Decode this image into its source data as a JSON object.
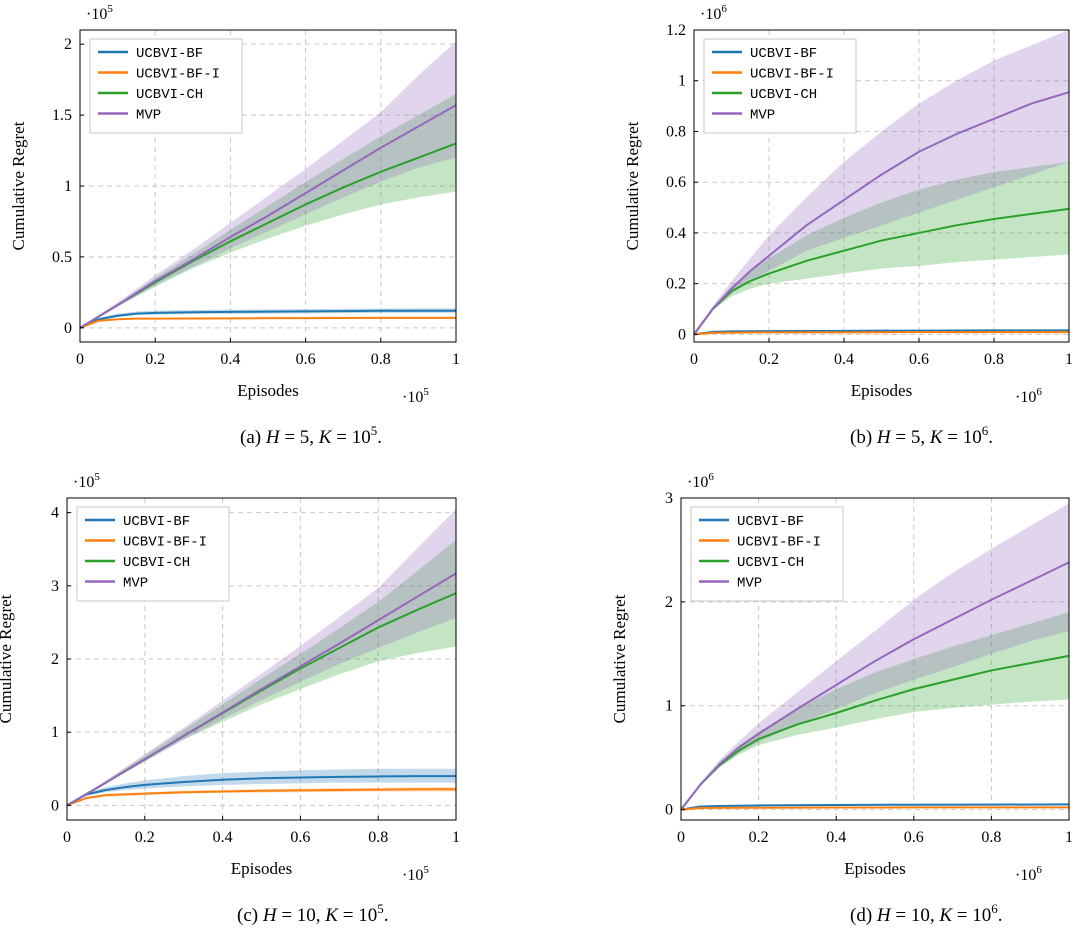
{
  "chart_data": [
    {
      "type": "line",
      "panel_label": "(a)",
      "caption": {
        "h_value": "5",
        "k_exponent": "5"
      },
      "xlabel": "Episodes",
      "ylabel": "Cumulative Regret",
      "x_multiplier": "·10",
      "x_exponent": "5",
      "y_multiplier": "·10",
      "y_exponent": "5",
      "xlim": [
        0,
        1
      ],
      "ylim": [
        -0.1,
        2.1
      ],
      "xticks": [
        0,
        0.2,
        0.4,
        0.6,
        0.8,
        1
      ],
      "xtick_labels": [
        "0",
        "0.2",
        "0.4",
        "0.6",
        "0.8",
        "1"
      ],
      "yticks": [
        0,
        0.5,
        1,
        1.5,
        2
      ],
      "ytick_labels": [
        "0",
        "0.5",
        "1",
        "1.5",
        "2"
      ],
      "grid": true,
      "legend_position": "top-left",
      "series": [
        {
          "name": "UCBVI-BF",
          "color": "#1f77b4",
          "x": [
            0,
            0.05,
            0.1,
            0.15,
            0.2,
            0.3,
            0.4,
            0.5,
            0.6,
            0.7,
            0.8,
            0.9,
            1
          ],
          "y": [
            0,
            0.06,
            0.085,
            0.1,
            0.105,
            0.11,
            0.112,
            0.114,
            0.116,
            0.118,
            0.12,
            0.12,
            0.12
          ],
          "lower": [
            0,
            0.05,
            0.075,
            0.09,
            0.092,
            0.097,
            0.099,
            0.1,
            0.102,
            0.104,
            0.105,
            0.105,
            0.105
          ],
          "upper": [
            0,
            0.07,
            0.1,
            0.115,
            0.12,
            0.126,
            0.128,
            0.13,
            0.132,
            0.134,
            0.136,
            0.137,
            0.138
          ]
        },
        {
          "name": "UCBVI-BF-I",
          "color": "#ff7f0e",
          "x": [
            0,
            0.05,
            0.1,
            0.15,
            0.2,
            0.3,
            0.4,
            0.5,
            0.6,
            0.7,
            0.8,
            0.9,
            1
          ],
          "y": [
            0,
            0.05,
            0.06,
            0.065,
            0.065,
            0.066,
            0.067,
            0.068,
            0.068,
            0.069,
            0.07,
            0.07,
            0.07
          ],
          "lower": [
            0,
            0.045,
            0.055,
            0.06,
            0.06,
            0.061,
            0.062,
            0.063,
            0.063,
            0.064,
            0.065,
            0.065,
            0.065
          ],
          "upper": [
            0,
            0.055,
            0.065,
            0.07,
            0.07,
            0.071,
            0.072,
            0.073,
            0.073,
            0.074,
            0.075,
            0.075,
            0.075
          ]
        },
        {
          "name": "UCBVI-CH",
          "color": "#2ca02c",
          "x": [
            0,
            0.1,
            0.2,
            0.3,
            0.4,
            0.5,
            0.6,
            0.7,
            0.8,
            0.9,
            1
          ],
          "y": [
            0,
            0.16,
            0.32,
            0.47,
            0.61,
            0.74,
            0.87,
            0.99,
            1.1,
            1.2,
            1.3
          ],
          "lower": [
            0,
            0.15,
            0.29,
            0.42,
            0.53,
            0.63,
            0.72,
            0.8,
            0.87,
            0.92,
            0.96
          ],
          "upper": [
            0,
            0.17,
            0.35,
            0.52,
            0.69,
            0.86,
            1.03,
            1.19,
            1.35,
            1.5,
            1.65
          ]
        },
        {
          "name": "MVP",
          "color": "#9467bd",
          "x": [
            0,
            0.1,
            0.2,
            0.3,
            0.4,
            0.5,
            0.6,
            0.7,
            0.8,
            0.9,
            1
          ],
          "y": [
            0,
            0.16,
            0.33,
            0.48,
            0.64,
            0.79,
            0.95,
            1.11,
            1.27,
            1.42,
            1.57
          ],
          "lower": [
            0,
            0.15,
            0.3,
            0.43,
            0.56,
            0.68,
            0.8,
            0.92,
            1.03,
            1.13,
            1.2
          ],
          "upper": [
            0,
            0.18,
            0.37,
            0.55,
            0.74,
            0.93,
            1.12,
            1.32,
            1.52,
            1.78,
            2.02
          ]
        }
      ]
    },
    {
      "type": "line",
      "panel_label": "(b)",
      "caption": {
        "h_value": "5",
        "k_exponent": "6"
      },
      "xlabel": "Episodes",
      "ylabel": "Cumulative Regret",
      "x_multiplier": "·10",
      "x_exponent": "6",
      "y_multiplier": "·10",
      "y_exponent": "6",
      "xlim": [
        0,
        1
      ],
      "ylim": [
        -0.03,
        1.2
      ],
      "xticks": [
        0,
        0.2,
        0.4,
        0.6,
        0.8,
        1
      ],
      "xtick_labels": [
        "0",
        "0.2",
        "0.4",
        "0.6",
        "0.8",
        "1"
      ],
      "yticks": [
        0,
        0.2,
        0.4,
        0.6,
        0.8,
        1,
        1.2
      ],
      "ytick_labels": [
        "0",
        "0.2",
        "0.4",
        "0.6",
        "0.8",
        "1",
        "1.2"
      ],
      "grid": true,
      "legend_position": "top-left",
      "series": [
        {
          "name": "UCBVI-BF",
          "color": "#1f77b4",
          "x": [
            0,
            0.05,
            0.1,
            0.2,
            0.4,
            0.6,
            0.8,
            1
          ],
          "y": [
            0,
            0.01,
            0.012,
            0.013,
            0.014,
            0.015,
            0.016,
            0.016
          ],
          "lower": [
            0,
            0.008,
            0.01,
            0.011,
            0.012,
            0.013,
            0.013,
            0.013
          ],
          "upper": [
            0,
            0.012,
            0.014,
            0.015,
            0.016,
            0.017,
            0.018,
            0.019
          ]
        },
        {
          "name": "UCBVI-BF-I",
          "color": "#ff7f0e",
          "x": [
            0,
            0.05,
            0.1,
            0.2,
            0.4,
            0.6,
            0.8,
            1
          ],
          "y": [
            0,
            0.006,
            0.007,
            0.008,
            0.008,
            0.009,
            0.009,
            0.009
          ],
          "lower": [
            0,
            0.004,
            0.005,
            0.006,
            0.006,
            0.007,
            0.007,
            0.007
          ],
          "upper": [
            0,
            0.008,
            0.009,
            0.01,
            0.01,
            0.011,
            0.011,
            0.011
          ]
        },
        {
          "name": "UCBVI-CH",
          "color": "#2ca02c",
          "x": [
            0,
            0.05,
            0.1,
            0.15,
            0.2,
            0.3,
            0.4,
            0.5,
            0.6,
            0.7,
            0.8,
            0.9,
            1
          ],
          "y": [
            0,
            0.1,
            0.17,
            0.21,
            0.24,
            0.29,
            0.33,
            0.37,
            0.4,
            0.43,
            0.455,
            0.475,
            0.495
          ],
          "lower": [
            0,
            0.095,
            0.15,
            0.18,
            0.2,
            0.22,
            0.24,
            0.26,
            0.27,
            0.285,
            0.295,
            0.305,
            0.315
          ],
          "upper": [
            0,
            0.11,
            0.19,
            0.25,
            0.3,
            0.39,
            0.46,
            0.52,
            0.57,
            0.61,
            0.64,
            0.66,
            0.68
          ]
        },
        {
          "name": "MVP",
          "color": "#9467bd",
          "x": [
            0,
            0.05,
            0.1,
            0.15,
            0.2,
            0.3,
            0.4,
            0.5,
            0.6,
            0.7,
            0.8,
            0.9,
            1
          ],
          "y": [
            0,
            0.1,
            0.18,
            0.25,
            0.31,
            0.43,
            0.53,
            0.63,
            0.72,
            0.79,
            0.85,
            0.91,
            0.955
          ],
          "lower": [
            0,
            0.095,
            0.16,
            0.21,
            0.25,
            0.33,
            0.38,
            0.43,
            0.48,
            0.53,
            0.58,
            0.63,
            0.68
          ],
          "upper": [
            0,
            0.11,
            0.21,
            0.3,
            0.39,
            0.54,
            0.68,
            0.8,
            0.91,
            1.0,
            1.08,
            1.14,
            1.2
          ]
        }
      ]
    },
    {
      "type": "line",
      "panel_label": "(c)",
      "caption": {
        "h_value": "10",
        "k_exponent": "5"
      },
      "xlabel": "Episodes",
      "ylabel": "Cumulative Regret",
      "x_multiplier": "·10",
      "x_exponent": "5",
      "y_multiplier": "·10",
      "y_exponent": "5",
      "xlim": [
        0,
        1
      ],
      "ylim": [
        -0.2,
        4.2
      ],
      "xticks": [
        0,
        0.2,
        0.4,
        0.6,
        0.8,
        1
      ],
      "xtick_labels": [
        "0",
        "0.2",
        "0.4",
        "0.6",
        "0.8",
        "1"
      ],
      "yticks": [
        0,
        1,
        2,
        3,
        4
      ],
      "ytick_labels": [
        "0",
        "1",
        "2",
        "3",
        "4"
      ],
      "grid": true,
      "legend_position": "top-left",
      "series": [
        {
          "name": "UCBVI-BF",
          "color": "#1f77b4",
          "x": [
            0,
            0.05,
            0.1,
            0.15,
            0.2,
            0.3,
            0.4,
            0.5,
            0.6,
            0.7,
            0.8,
            0.9,
            1
          ],
          "y": [
            0,
            0.15,
            0.21,
            0.25,
            0.28,
            0.32,
            0.35,
            0.37,
            0.38,
            0.39,
            0.395,
            0.4,
            0.4
          ],
          "lower": [
            0,
            0.13,
            0.18,
            0.21,
            0.23,
            0.26,
            0.28,
            0.29,
            0.3,
            0.31,
            0.31,
            0.31,
            0.31
          ],
          "upper": [
            0,
            0.17,
            0.25,
            0.3,
            0.34,
            0.4,
            0.44,
            0.46,
            0.48,
            0.49,
            0.5,
            0.5,
            0.5
          ]
        },
        {
          "name": "UCBVI-BF-I",
          "color": "#ff7f0e",
          "x": [
            0,
            0.05,
            0.1,
            0.15,
            0.2,
            0.3,
            0.4,
            0.5,
            0.6,
            0.7,
            0.8,
            0.9,
            1
          ],
          "y": [
            0,
            0.1,
            0.14,
            0.15,
            0.16,
            0.18,
            0.19,
            0.2,
            0.205,
            0.21,
            0.215,
            0.22,
            0.22
          ],
          "lower": [
            0,
            0.09,
            0.12,
            0.13,
            0.14,
            0.16,
            0.17,
            0.175,
            0.18,
            0.185,
            0.19,
            0.19,
            0.19
          ],
          "upper": [
            0,
            0.11,
            0.16,
            0.17,
            0.18,
            0.2,
            0.21,
            0.22,
            0.23,
            0.235,
            0.24,
            0.245,
            0.25
          ]
        },
        {
          "name": "UCBVI-CH",
          "color": "#2ca02c",
          "x": [
            0,
            0.1,
            0.2,
            0.3,
            0.4,
            0.5,
            0.6,
            0.7,
            0.8,
            0.9,
            1
          ],
          "y": [
            0,
            0.31,
            0.63,
            0.95,
            1.26,
            1.57,
            1.87,
            2.15,
            2.43,
            2.67,
            2.9
          ],
          "lower": [
            0,
            0.3,
            0.6,
            0.9,
            1.14,
            1.38,
            1.59,
            1.79,
            1.97,
            2.08,
            2.17
          ],
          "upper": [
            0,
            0.33,
            0.68,
            1.03,
            1.38,
            1.73,
            2.07,
            2.42,
            2.78,
            3.2,
            3.63
          ]
        },
        {
          "name": "MVP",
          "color": "#9467bd",
          "x": [
            0,
            0.1,
            0.2,
            0.3,
            0.4,
            0.5,
            0.6,
            0.7,
            0.8,
            0.9,
            1
          ],
          "y": [
            0,
            0.31,
            0.63,
            0.95,
            1.27,
            1.59,
            1.9,
            2.21,
            2.53,
            2.85,
            3.17
          ],
          "lower": [
            0,
            0.3,
            0.6,
            0.9,
            1.18,
            1.44,
            1.69,
            1.93,
            2.15,
            2.36,
            2.56
          ],
          "upper": [
            0,
            0.34,
            0.7,
            1.06,
            1.43,
            1.8,
            2.18,
            2.57,
            2.97,
            3.51,
            4.05
          ]
        }
      ]
    },
    {
      "type": "line",
      "panel_label": "(d)",
      "caption": {
        "h_value": "10",
        "k_exponent": "6"
      },
      "xlabel": "Episodes",
      "ylabel": "Cumulative Regret",
      "x_multiplier": "·10",
      "x_exponent": "6",
      "y_multiplier": "·10",
      "y_exponent": "6",
      "xlim": [
        0,
        1
      ],
      "ylim": [
        -0.1,
        3
      ],
      "xticks": [
        0,
        0.2,
        0.4,
        0.6,
        0.8,
        1
      ],
      "xtick_labels": [
        "0",
        "0.2",
        "0.4",
        "0.6",
        "0.8",
        "1"
      ],
      "yticks": [
        0,
        1,
        2,
        3
      ],
      "ytick_labels": [
        "0",
        "1",
        "2",
        "3"
      ],
      "grid": true,
      "legend_position": "top-left",
      "series": [
        {
          "name": "UCBVI-BF",
          "color": "#1f77b4",
          "x": [
            0,
            0.05,
            0.1,
            0.2,
            0.4,
            0.6,
            0.8,
            1
          ],
          "y": [
            0,
            0.03,
            0.035,
            0.04,
            0.045,
            0.047,
            0.048,
            0.05
          ],
          "lower": [
            0,
            0.025,
            0.03,
            0.034,
            0.038,
            0.04,
            0.041,
            0.042
          ],
          "upper": [
            0,
            0.035,
            0.04,
            0.046,
            0.052,
            0.055,
            0.056,
            0.058
          ]
        },
        {
          "name": "UCBVI-BF-I",
          "color": "#ff7f0e",
          "x": [
            0,
            0.05,
            0.1,
            0.2,
            0.4,
            0.6,
            0.8,
            1
          ],
          "y": [
            0,
            0.015,
            0.017,
            0.018,
            0.02,
            0.021,
            0.022,
            0.022
          ],
          "lower": [
            0,
            0.011,
            0.013,
            0.014,
            0.016,
            0.017,
            0.018,
            0.018
          ],
          "upper": [
            0,
            0.019,
            0.021,
            0.022,
            0.024,
            0.025,
            0.026,
            0.026
          ]
        },
        {
          "name": "UCBVI-CH",
          "color": "#2ca02c",
          "x": [
            0,
            0.05,
            0.1,
            0.15,
            0.2,
            0.3,
            0.4,
            0.5,
            0.6,
            0.7,
            0.8,
            0.9,
            1
          ],
          "y": [
            0,
            0.24,
            0.43,
            0.57,
            0.68,
            0.82,
            0.93,
            1.05,
            1.16,
            1.25,
            1.34,
            1.41,
            1.48
          ],
          "lower": [
            0,
            0.23,
            0.41,
            0.53,
            0.62,
            0.72,
            0.79,
            0.87,
            0.94,
            0.98,
            1.01,
            1.04,
            1.06
          ],
          "upper": [
            0,
            0.25,
            0.46,
            0.62,
            0.75,
            0.97,
            1.16,
            1.32,
            1.45,
            1.57,
            1.68,
            1.79,
            1.9
          ]
        },
        {
          "name": "MVP",
          "color": "#9467bd",
          "x": [
            0,
            0.05,
            0.1,
            0.15,
            0.2,
            0.3,
            0.4,
            0.5,
            0.6,
            0.7,
            0.8,
            0.9,
            1
          ],
          "y": [
            0,
            0.24,
            0.44,
            0.6,
            0.73,
            0.97,
            1.2,
            1.43,
            1.64,
            1.83,
            2.02,
            2.2,
            2.38
          ],
          "lower": [
            0,
            0.23,
            0.41,
            0.55,
            0.65,
            0.82,
            0.97,
            1.12,
            1.25,
            1.37,
            1.5,
            1.62,
            1.72
          ],
          "upper": [
            0,
            0.26,
            0.48,
            0.66,
            0.83,
            1.13,
            1.43,
            1.72,
            2.02,
            2.28,
            2.51,
            2.73,
            2.95
          ]
        }
      ]
    }
  ]
}
